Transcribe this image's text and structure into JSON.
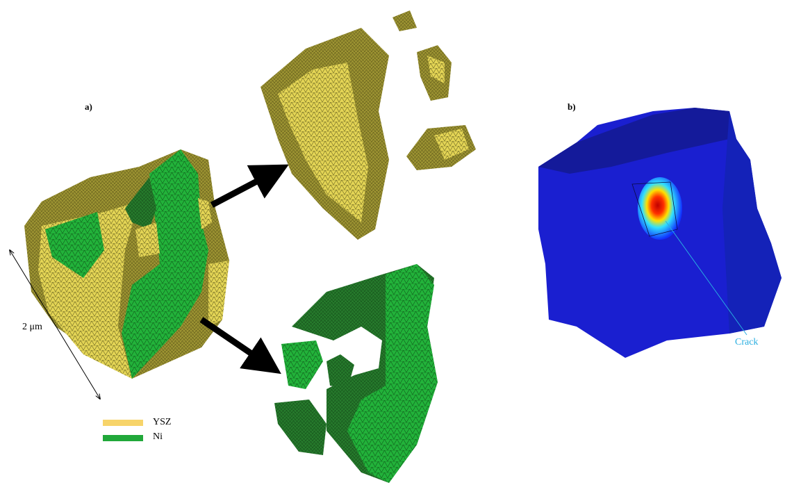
{
  "panels": {
    "a": {
      "label": "a)",
      "scale_label": "2 μm",
      "legend": [
        {
          "name": "YSZ",
          "color": "#f7d46a"
        },
        {
          "name": "Ni",
          "color": "#21a83a"
        }
      ]
    },
    "b": {
      "label": "b)",
      "annotation": "Crack"
    }
  }
}
